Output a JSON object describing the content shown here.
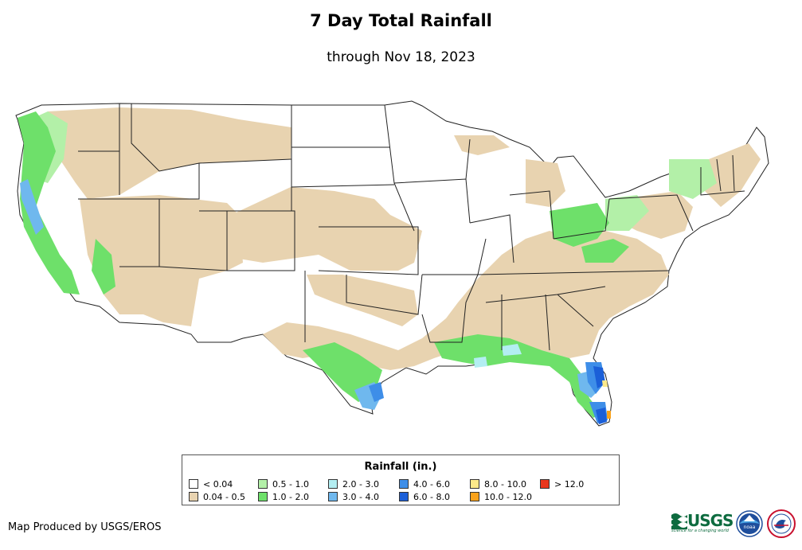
{
  "map": {
    "title": "7 Day Total Rainfall",
    "subtitle": "through Nov 18, 2023"
  },
  "legend": {
    "title": "Rainfall (in.)",
    "items": [
      {
        "label": "< 0.04",
        "color": "#ffffff"
      },
      {
        "label": "0.04 - 0.5",
        "color": "#e8d3b0"
      },
      {
        "label": "0.5 - 1.0",
        "color": "#b3f0a8"
      },
      {
        "label": "1.0 - 2.0",
        "color": "#6ee06a"
      },
      {
        "label": "2.0 - 3.0",
        "color": "#b3eef2"
      },
      {
        "label": "3.0 - 4.0",
        "color": "#6fb8ee"
      },
      {
        "label": "4.0 - 6.0",
        "color": "#3e8ee8"
      },
      {
        "label": "6.0 - 8.0",
        "color": "#1b5fd8"
      },
      {
        "label": "8.0 - 10.0",
        "color": "#fde98a"
      },
      {
        "label": "10.0 - 12.0",
        "color": "#f9a21b"
      },
      {
        "label": "> 12.0",
        "color": "#e8361c"
      }
    ]
  },
  "footer": {
    "credit": "Map Produced by USGS/EROS",
    "usgs_logo_text": "USGS",
    "usgs_tagline": "science for a changing world",
    "noaa_logo_text": "noaa"
  }
}
